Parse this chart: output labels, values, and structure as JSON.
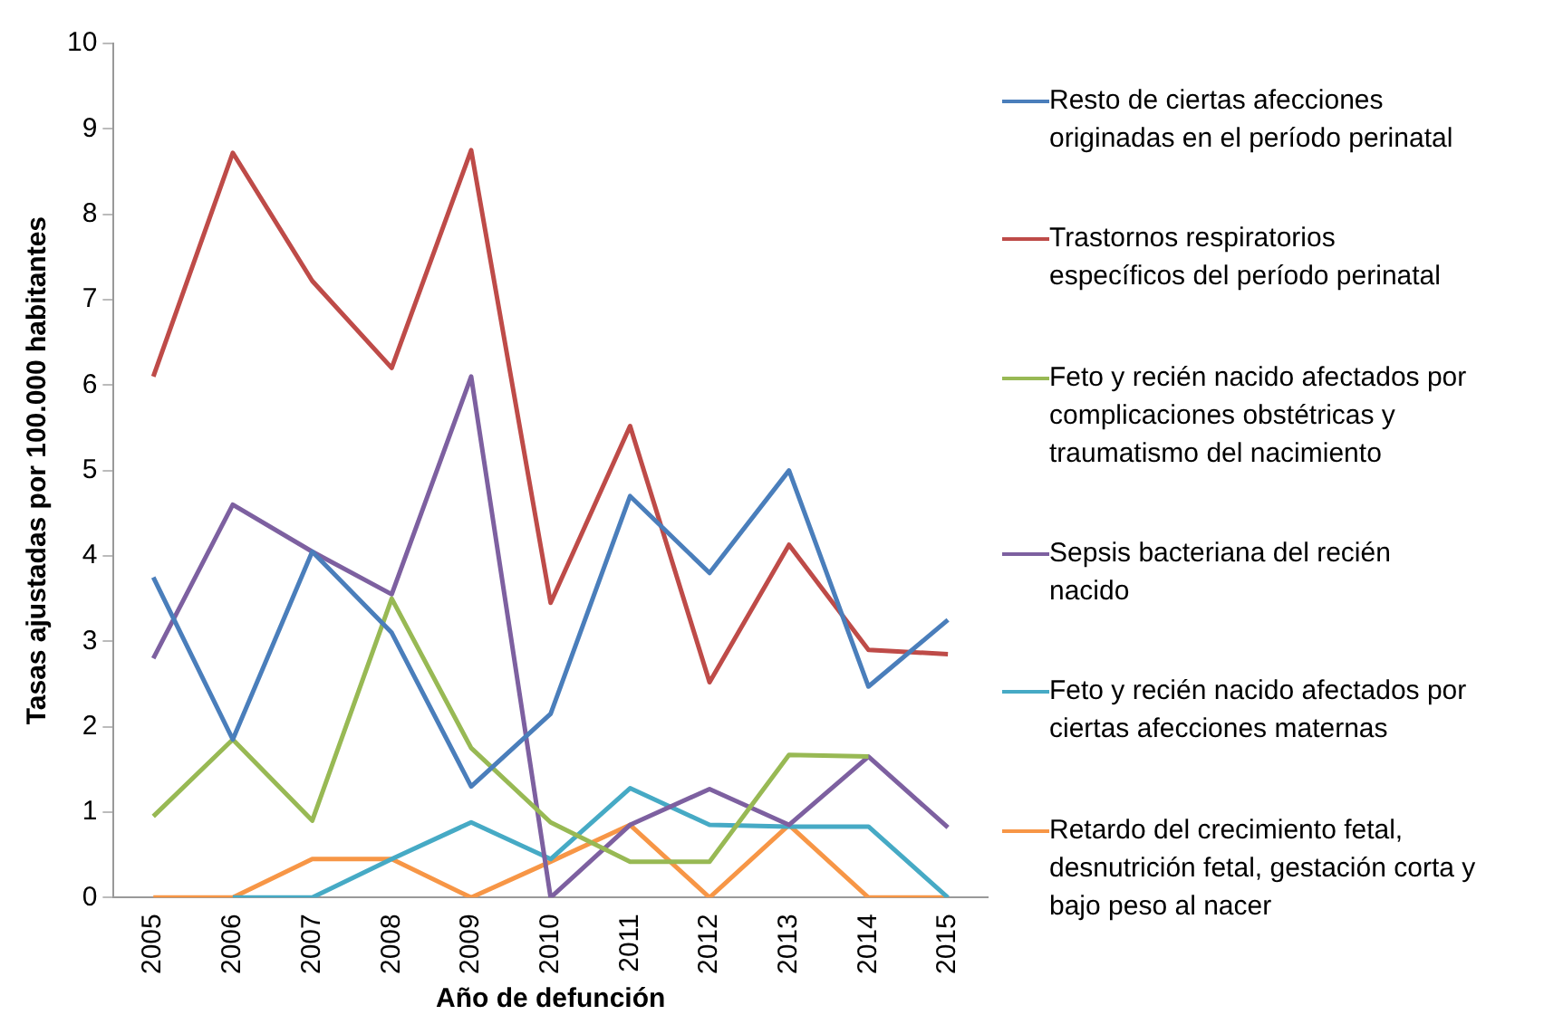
{
  "chart_data": {
    "type": "line",
    "xlabel": "Año de defunción",
    "ylabel": "Tasas ajustadas por 100.000 habitantes",
    "categories": [
      "2005",
      "2006",
      "2007",
      "2008",
      "2009",
      "2010",
      "2011",
      "2012",
      "2013",
      "2014",
      "2015"
    ],
    "ylim": [
      0,
      10
    ],
    "yticks": [
      0,
      1,
      2,
      3,
      4,
      5,
      6,
      7,
      8,
      9,
      10
    ],
    "grid": false,
    "legend": "right",
    "marker": "none",
    "line_style": "solid",
    "series": [
      {
        "name": "Resto de ciertas afecciones originadas en el período perinatal",
        "color": "#4a7ebb",
        "values": [
          3.75,
          1.85,
          4.05,
          3.1,
          1.3,
          2.15,
          4.7,
          3.8,
          5.0,
          2.47,
          3.25
        ]
      },
      {
        "name": "Trastornos respiratorios específicos del período perinatal",
        "color": "#be4b48",
        "values": [
          6.1,
          8.72,
          7.22,
          6.2,
          8.75,
          3.45,
          5.52,
          2.52,
          4.13,
          2.9,
          2.85
        ]
      },
      {
        "name": "Feto y recién nacido afectados por complicaciones obstétricas y traumatismo del nacimiento",
        "color": "#98b954",
        "values": [
          0.95,
          1.85,
          0.9,
          3.5,
          1.75,
          0.88,
          0.42,
          0.42,
          1.67,
          1.65,
          null
        ]
      },
      {
        "name": "Sepsis bacteriana del recién nacido",
        "color": "#7d60a0",
        "values": [
          2.8,
          4.6,
          4.05,
          3.55,
          6.1,
          0,
          0.85,
          1.27,
          0.85,
          1.65,
          0.82
        ]
      },
      {
        "name": "Feto y recién nacido afectados por ciertas afecciones maternas",
        "color": "#46aac5",
        "values": [
          null,
          0,
          0,
          0.45,
          0.88,
          0.45,
          1.28,
          0.85,
          0.83,
          0.83,
          0
        ]
      },
      {
        "name": "Retardo del crecimiento fetal, desnutrición fetal, gestación corta y bajo peso al nacer",
        "color": "#f79646",
        "values": [
          0,
          0,
          0.45,
          0.45,
          0,
          0.42,
          0.85,
          0,
          0.85,
          0,
          0
        ]
      }
    ]
  }
}
